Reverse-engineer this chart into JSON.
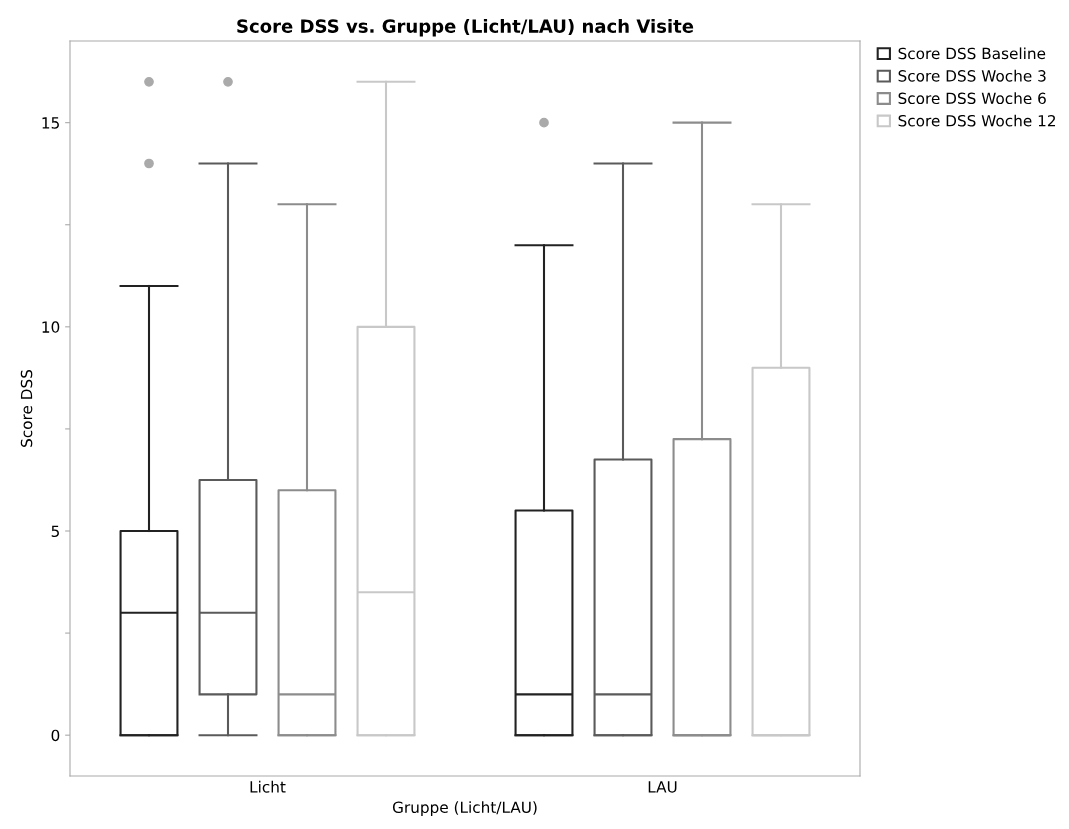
{
  "chart_data": {
    "type": "box",
    "title": "Score DSS vs. Gruppe (Licht/LAU) nach Visite",
    "xlabel": "Gruppe (Licht/LAU)",
    "ylabel": "Score DSS",
    "categories": [
      "Licht",
      "LAU"
    ],
    "ylim": [
      -1,
      17
    ],
    "yticks": [
      0,
      {
        "value": 2.5,
        "label": null
      },
      5,
      {
        "value": 7.5,
        "label": null
      },
      10,
      {
        "value": 12.5,
        "label": null
      },
      15
    ],
    "grid": false,
    "legend": "top right",
    "series": [
      {
        "name": "Score DSS Baseline",
        "color": "#222222",
        "boxes": [
          {
            "low": 0,
            "q1": 0,
            "median": 3,
            "q3": 5,
            "high": 11,
            "outliers": [
              14,
              16
            ]
          },
          {
            "low": 0,
            "q1": 0,
            "median": 1,
            "q3": 5.5,
            "high": 12,
            "outliers": [
              15
            ]
          }
        ]
      },
      {
        "name": "Score DSS Woche 3",
        "color": "#5a5a5a",
        "boxes": [
          {
            "low": 0,
            "q1": 1,
            "median": 3,
            "q3": 6.25,
            "high": 14,
            "outliers": [
              16
            ]
          },
          {
            "low": 0,
            "q1": 0,
            "median": 1,
            "q3": 6.75,
            "high": 14
          }
        ]
      },
      {
        "name": "Score DSS Woche 6",
        "color": "#8c8c8c",
        "boxes": [
          {
            "low": 0,
            "q1": 0,
            "median": 1,
            "q3": 6,
            "high": 13
          },
          {
            "low": 0,
            "q1": 0,
            "median": 0,
            "q3": 7.25,
            "high": 15
          }
        ]
      },
      {
        "name": "Score DSS Woche 12",
        "color": "#c8c8c8",
        "boxes": [
          {
            "low": 0,
            "q1": 0,
            "median": 3.5,
            "q3": 10,
            "high": 16
          },
          {
            "low": 0,
            "q1": 0,
            "median": 0,
            "q3": 9,
            "high": 13
          }
        ]
      }
    ]
  }
}
